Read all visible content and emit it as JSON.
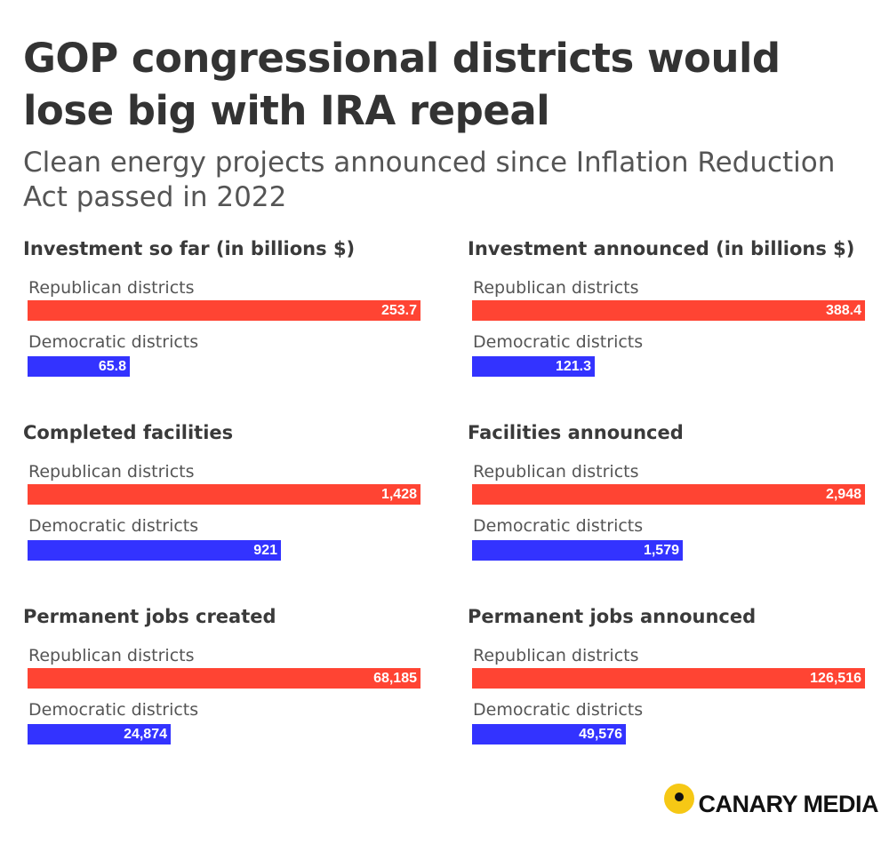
{
  "title": "GOP congressional districts would lose big with IRA repeal",
  "subtitle": "Clean energy projects announced since Inflation Reduction Act passed in 2022",
  "colors": {
    "republican": "#ff4433",
    "democratic": "#3333ff"
  },
  "logo": {
    "text": "CANARY MEDIA"
  },
  "chart_data": [
    {
      "type": "bar",
      "title": "Investment so far (in billions $)",
      "categories": [
        "Republican districts",
        "Democratic districts"
      ],
      "values": [
        253.7,
        65.8
      ],
      "labels": [
        "253.7",
        "65.8"
      ]
    },
    {
      "type": "bar",
      "title": "Investment announced (in billions $)",
      "categories": [
        "Republican districts",
        "Democratic districts"
      ],
      "values": [
        388.4,
        121.3
      ],
      "labels": [
        "388.4",
        "121.3"
      ]
    },
    {
      "type": "bar",
      "title": "Completed facilities",
      "categories": [
        "Republican districts",
        "Democratic districts"
      ],
      "values": [
        1428,
        921
      ],
      "labels": [
        "1,428",
        "921"
      ]
    },
    {
      "type": "bar",
      "title": "Facilities announced",
      "categories": [
        "Republican districts",
        "Democratic districts"
      ],
      "values": [
        2948,
        1579
      ],
      "labels": [
        "2,948",
        "1,579"
      ]
    },
    {
      "type": "bar",
      "title": "Permanent jobs created",
      "categories": [
        "Republican districts",
        "Democratic districts"
      ],
      "values": [
        68185,
        24874
      ],
      "labels": [
        "68,185",
        "24,874"
      ]
    },
    {
      "type": "bar",
      "title": "Permanent jobs announced",
      "categories": [
        "Republican districts",
        "Democratic districts"
      ],
      "values": [
        126516,
        49576
      ],
      "labels": [
        "126,516",
        "49,576"
      ]
    }
  ]
}
